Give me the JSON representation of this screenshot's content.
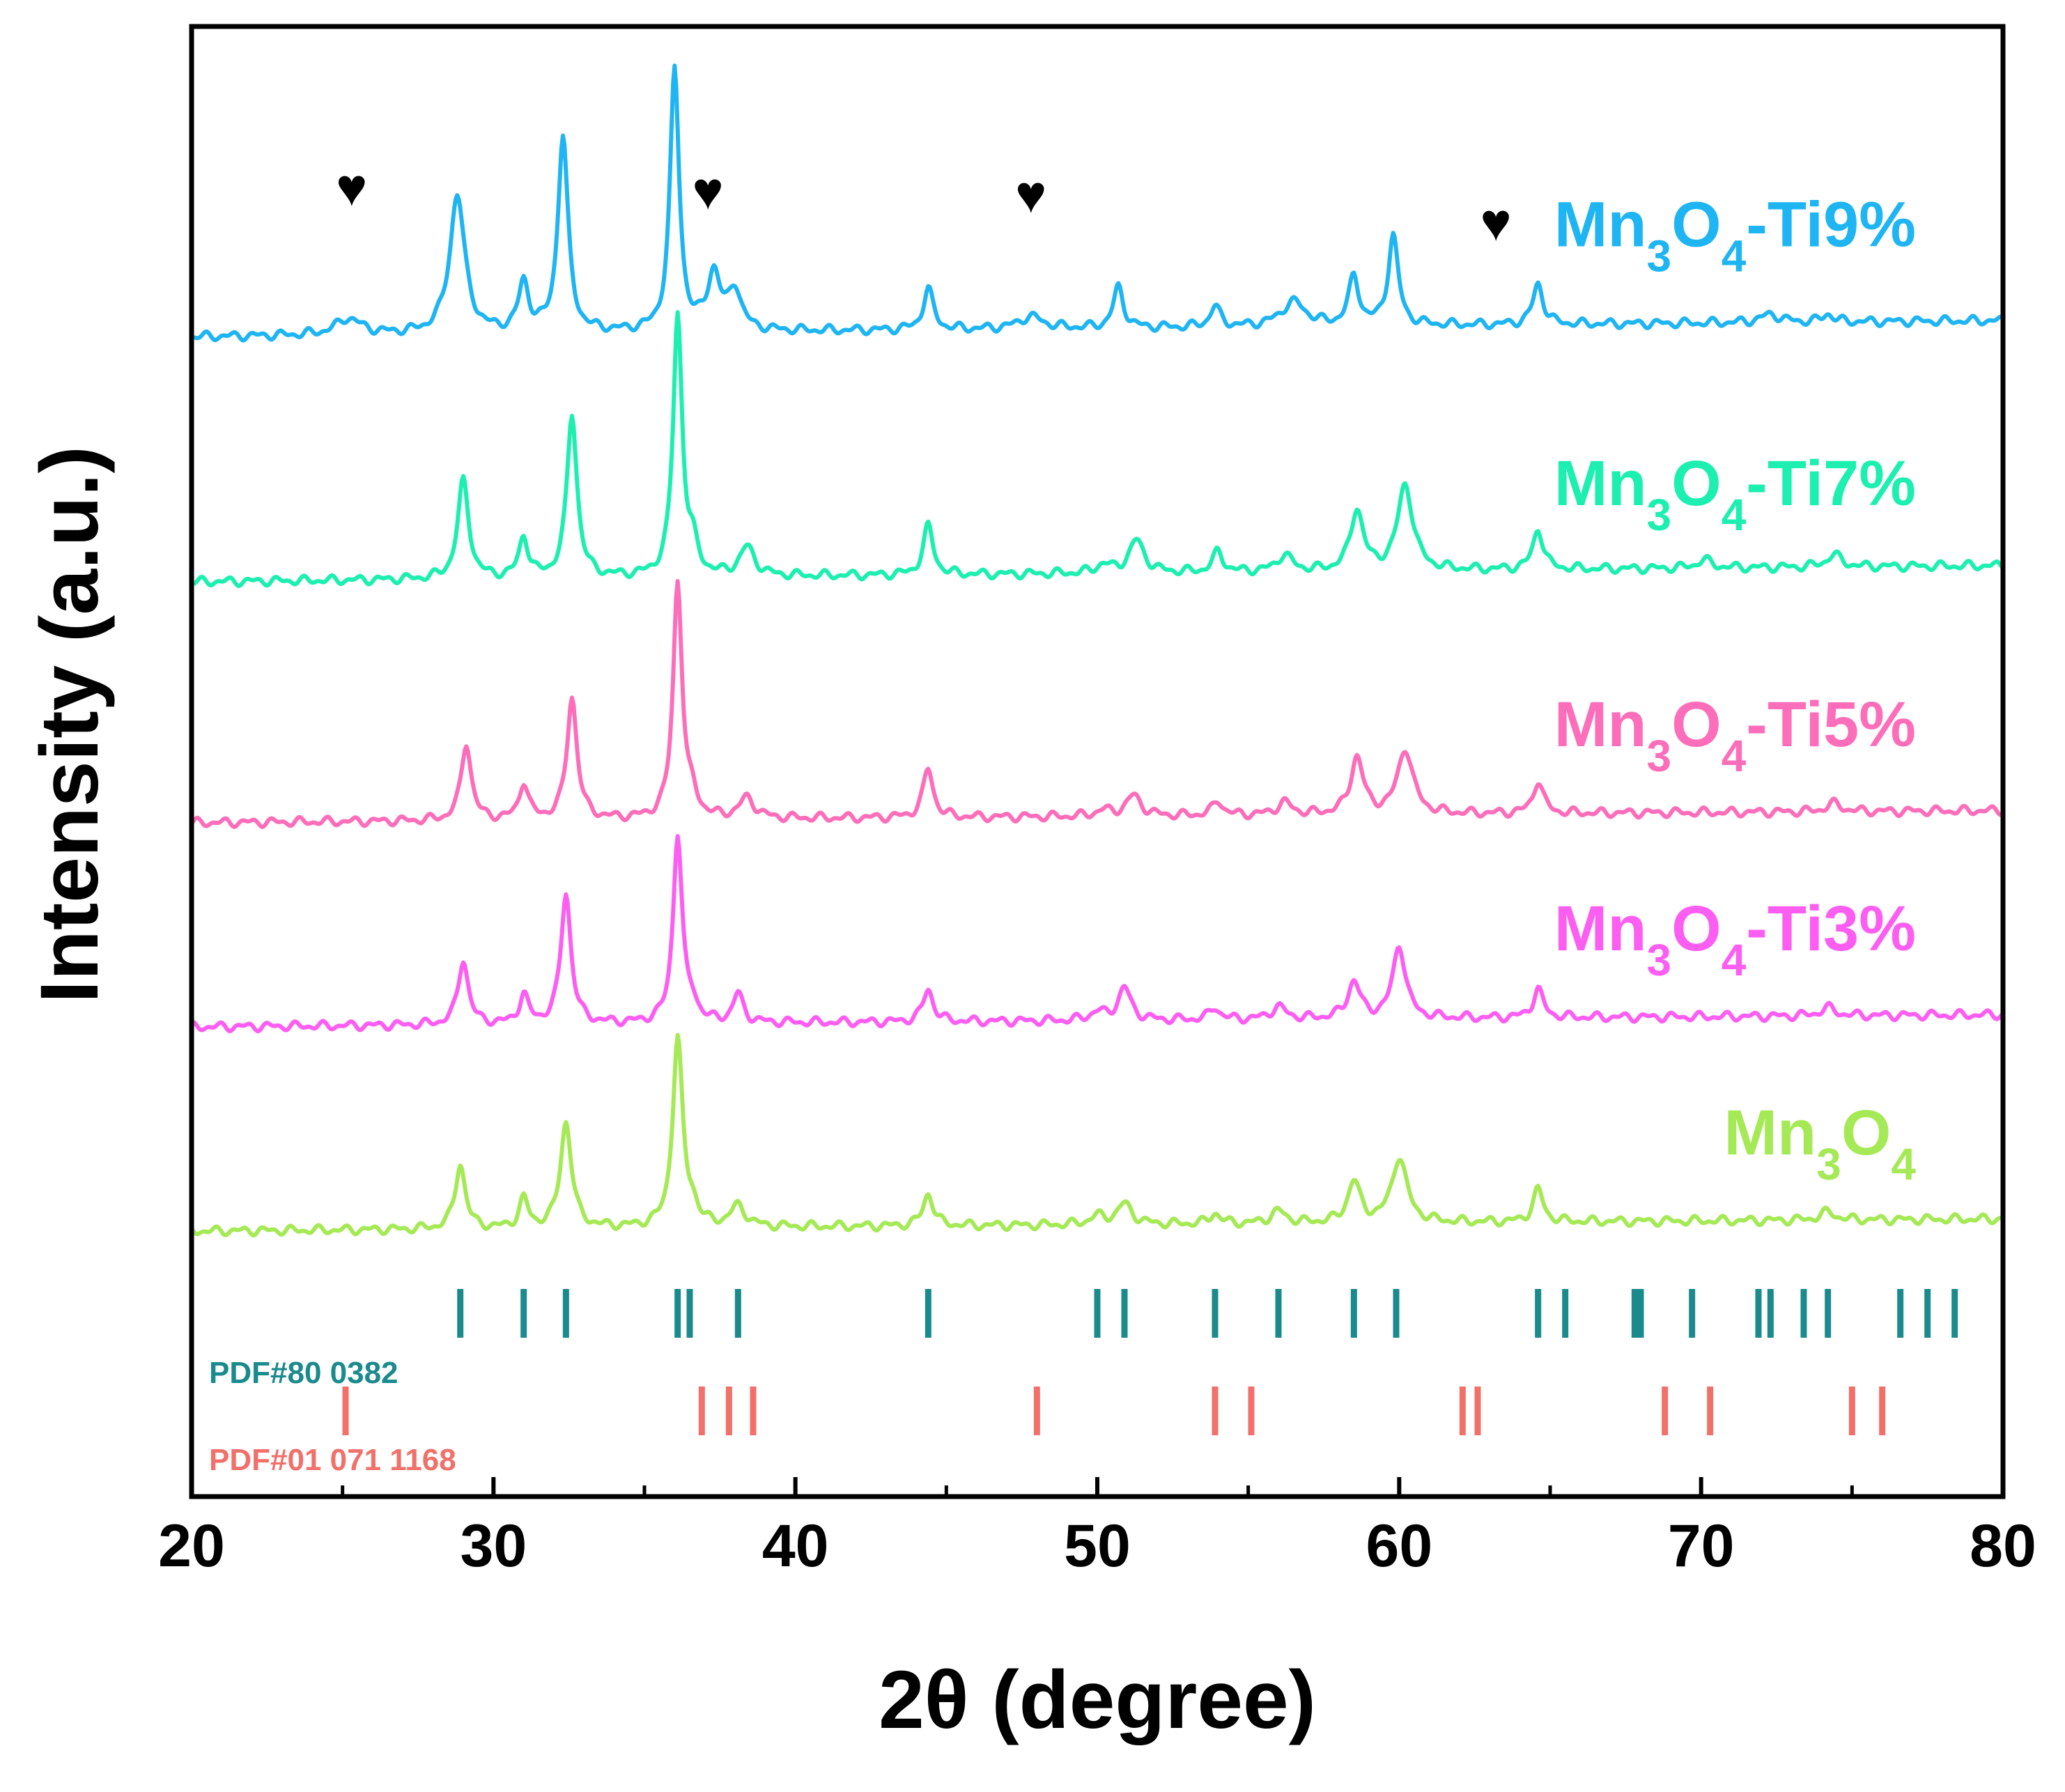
{
  "chart_data": {
    "type": "line",
    "title": "",
    "xlabel": "2θ (degree)",
    "ylabel": "Intensity (a.u.)",
    "xlim": [
      20,
      80
    ],
    "xticks": [
      20,
      30,
      40,
      50,
      60,
      70,
      80
    ],
    "y_ticks_shown": false,
    "legend": "inline labels at right of each trace",
    "series": [
      {
        "name": "Mn3O4-Ti9%",
        "label_parts": [
          "Mn",
          "3",
          "O",
          "4",
          "-Ti9%"
        ],
        "color": "#1fb5f2",
        "baseline": 38,
        "drift": -2,
        "peaks": [
          [
            25.2,
            2,
            0.5
          ],
          [
            28.8,
            17,
            0.3
          ],
          [
            31.0,
            6,
            0.2
          ],
          [
            32.3,
            24,
            0.2
          ],
          [
            36.0,
            32,
            0.18
          ],
          [
            37.3,
            7,
            0.25
          ],
          [
            38.0,
            5,
            0.25
          ],
          [
            44.4,
            5,
            0.2
          ],
          [
            47.8,
            1.5,
            0.5
          ],
          [
            50.7,
            5,
            0.2
          ],
          [
            53.9,
            2.5,
            0.2
          ],
          [
            56.5,
            3,
            0.5
          ],
          [
            58.5,
            6,
            0.2
          ],
          [
            59.8,
            11,
            0.2
          ],
          [
            64.6,
            5,
            0.2
          ],
          [
            72.3,
            1,
            0.4
          ],
          [
            74.2,
            1,
            0.2
          ]
        ]
      },
      {
        "name": "Mn3O4-Ti7%",
        "label_parts": [
          "Mn",
          "3",
          "O",
          "4",
          "-Ti7%"
        ],
        "color": "#1cefb0",
        "baseline": 68,
        "drift": -2,
        "peaks": [
          [
            29.0,
            12,
            0.22
          ],
          [
            31.0,
            5,
            0.18
          ],
          [
            32.6,
            20,
            0.2
          ],
          [
            36.1,
            32,
            0.18
          ],
          [
            36.6,
            3,
            0.2
          ],
          [
            38.4,
            3.5,
            0.3
          ],
          [
            44.4,
            6,
            0.2
          ],
          [
            50.2,
            1,
            0.3
          ],
          [
            51.3,
            4,
            0.3
          ],
          [
            54.0,
            2.5,
            0.2
          ],
          [
            56.2,
            2,
            0.3
          ],
          [
            58.6,
            7.5,
            0.25
          ],
          [
            60.2,
            10.5,
            0.3
          ],
          [
            64.6,
            5,
            0.2
          ],
          [
            70.1,
            1,
            0.3
          ],
          [
            74.4,
            1.5,
            0.3
          ]
        ]
      },
      {
        "name": "Mn3O4-Ti5%",
        "label_parts": [
          "Mn",
          "3",
          "O",
          "4",
          "-Ti5%"
        ],
        "color": "#fc6eba",
        "baseline": 97.5,
        "drift": -1.5,
        "peaks": [
          [
            29.1,
            9.5,
            0.2
          ],
          [
            31.0,
            4.5,
            0.18
          ],
          [
            32.6,
            15,
            0.2
          ],
          [
            36.1,
            29,
            0.18
          ],
          [
            36.6,
            2,
            0.2
          ],
          [
            38.4,
            2.5,
            0.3
          ],
          [
            44.4,
            6,
            0.2
          ],
          [
            50.2,
            0.7,
            0.3
          ],
          [
            51.2,
            2.5,
            0.3
          ],
          [
            54.0,
            1.8,
            0.2
          ],
          [
            56.2,
            1.5,
            0.3
          ],
          [
            58.6,
            7,
            0.25
          ],
          [
            60.2,
            8,
            0.3
          ],
          [
            64.6,
            4,
            0.2
          ],
          [
            74.4,
            1,
            0.3
          ]
        ]
      },
      {
        "name": "Mn3O4-Ti3%",
        "label_parts": [
          "Mn",
          "3",
          "O",
          "4",
          "-Ti3%"
        ],
        "color": "#fc5ef2",
        "baseline": 122.5,
        "drift": -1.5,
        "peaks": [
          [
            29.0,
            8,
            0.2
          ],
          [
            31.0,
            3.5,
            0.18
          ],
          [
            32.4,
            16,
            0.2
          ],
          [
            36.1,
            23,
            0.18
          ],
          [
            36.6,
            2,
            0.2
          ],
          [
            38.1,
            3.5,
            0.2
          ],
          [
            44.4,
            4,
            0.2
          ],
          [
            50.0,
            1,
            0.3
          ],
          [
            50.9,
            4,
            0.25
          ],
          [
            53.9,
            1.5,
            0.2
          ],
          [
            56.0,
            1.5,
            0.3
          ],
          [
            58.5,
            4.5,
            0.25
          ],
          [
            60.0,
            9,
            0.25
          ],
          [
            64.6,
            3.5,
            0.2
          ],
          [
            74.2,
            1,
            0.3
          ]
        ]
      },
      {
        "name": "Mn3O4",
        "label_parts": [
          "Mn",
          "3",
          "O",
          "4",
          ""
        ],
        "color": "#a5ea56",
        "baseline": 147.5,
        "drift": -1.5,
        "peaks": [
          [
            28.9,
            8,
            0.2
          ],
          [
            31.0,
            3.5,
            0.18
          ],
          [
            32.4,
            13,
            0.22
          ],
          [
            36.1,
            23,
            0.2
          ],
          [
            36.6,
            2,
            0.2
          ],
          [
            38.1,
            2.5,
            0.3
          ],
          [
            44.4,
            4,
            0.2
          ],
          [
            50.0,
            1,
            0.3
          ],
          [
            50.9,
            2.5,
            0.3
          ],
          [
            53.9,
            1.3,
            0.2
          ],
          [
            56.0,
            1.5,
            0.3
          ],
          [
            58.5,
            5,
            0.25
          ],
          [
            60.0,
            8,
            0.3
          ],
          [
            64.6,
            4,
            0.2
          ],
          [
            74.2,
            1,
            0.3
          ]
        ]
      }
    ],
    "unknown_phase_markers": {
      "symbol": "♥",
      "x": [
        25.3,
        37.1,
        47.8,
        63.2
      ]
    },
    "reference_patterns": [
      {
        "name": "PDF#80 0382",
        "color": "#1a8a8c",
        "positions": [
          28.9,
          31.0,
          32.4,
          36.1,
          36.5,
          38.1,
          44.4,
          50.0,
          50.9,
          53.9,
          56.0,
          58.5,
          59.9,
          64.6,
          65.5,
          67.8,
          68.0,
          69.7,
          71.9,
          72.3,
          73.4,
          74.2,
          76.6,
          77.5,
          78.4
        ]
      },
      {
        "name": "PDF#01 071 1168",
        "color": "#f1706a",
        "positions": [
          25.1,
          36.9,
          37.8,
          38.6,
          48.0,
          53.9,
          55.1,
          62.1,
          62.6,
          68.8,
          70.3,
          75.0,
          76.0
        ]
      }
    ]
  }
}
